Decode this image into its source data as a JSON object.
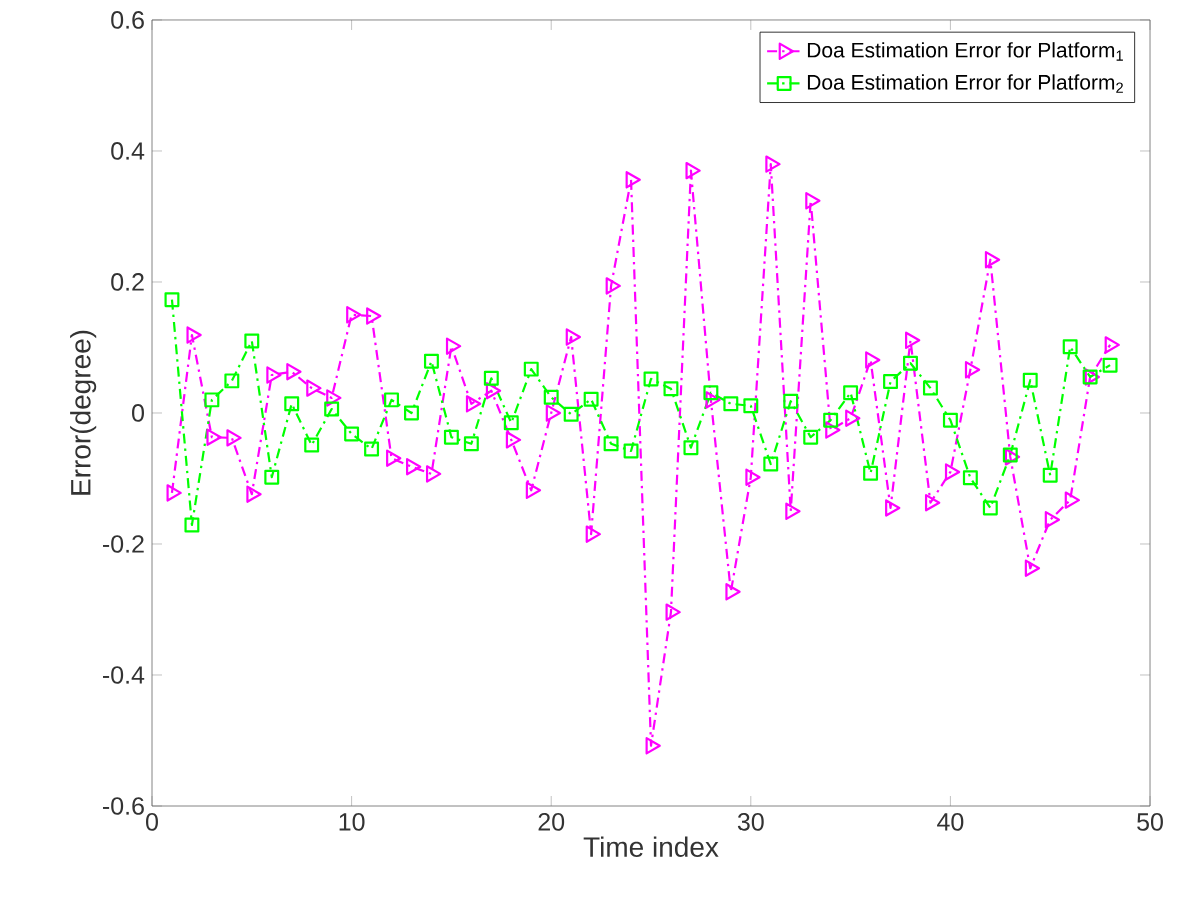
{
  "chart_data": {
    "type": "line",
    "xlabel": "Time index",
    "ylabel": "Error(degree)",
    "x": [
      1,
      2,
      3,
      4,
      5,
      6,
      7,
      8,
      9,
      10,
      11,
      12,
      13,
      14,
      15,
      16,
      17,
      18,
      19,
      20,
      21,
      22,
      23,
      24,
      25,
      26,
      27,
      28,
      29,
      30,
      31,
      32,
      33,
      34,
      35,
      36,
      37,
      38,
      39,
      40,
      41,
      42,
      43,
      44,
      45,
      46,
      47,
      48
    ],
    "series": [
      {
        "name": "Doa Estimation Error for Platform$_{1}$",
        "color": "#ff00ff",
        "marker": "triangle",
        "line_style": "dashdot",
        "values": [
          -0.122,
          0.119,
          -0.037,
          -0.038,
          -0.124,
          0.058,
          0.063,
          0.038,
          0.023,
          0.15,
          0.148,
          -0.069,
          -0.082,
          -0.093,
          0.102,
          0.014,
          0.034,
          -0.041,
          -0.118,
          0.0,
          0.116,
          -0.185,
          0.194,
          0.356,
          -0.508,
          -0.304,
          0.37,
          0.02,
          -0.273,
          -0.098,
          0.38,
          -0.15,
          0.324,
          -0.026,
          -0.008,
          0.081,
          -0.145,
          0.111,
          -0.137,
          -0.09,
          0.066,
          0.234,
          -0.067,
          -0.237,
          -0.163,
          -0.133,
          0.055,
          0.104
        ]
      },
      {
        "name": "Doa Estimation Error for Platform$_{2}$",
        "color": "#00ff00",
        "marker": "square",
        "line_style": "dashdot",
        "values": [
          0.173,
          -0.171,
          0.02,
          0.049,
          0.11,
          -0.098,
          0.014,
          -0.049,
          0.006,
          -0.032,
          -0.055,
          0.02,
          0.0,
          0.079,
          -0.037,
          -0.047,
          0.053,
          -0.015,
          0.067,
          0.024,
          -0.002,
          0.021,
          -0.047,
          -0.058,
          0.052,
          0.037,
          -0.053,
          0.031,
          0.014,
          0.011,
          -0.078,
          0.018,
          -0.037,
          -0.011,
          0.031,
          -0.092,
          0.048,
          0.076,
          0.038,
          -0.011,
          -0.099,
          -0.145,
          -0.064,
          0.05,
          -0.095,
          0.101,
          0.055,
          0.073
        ]
      }
    ],
    "xlim": [
      0,
      50
    ],
    "xticks": [
      0,
      10,
      20,
      30,
      40,
      50
    ],
    "ylim": [
      -0.6,
      0.6
    ],
    "yticks": [
      -0.6,
      -0.4,
      -0.2,
      0,
      0.2,
      0.4,
      0.6
    ],
    "grid": false,
    "legend": "top right"
  }
}
